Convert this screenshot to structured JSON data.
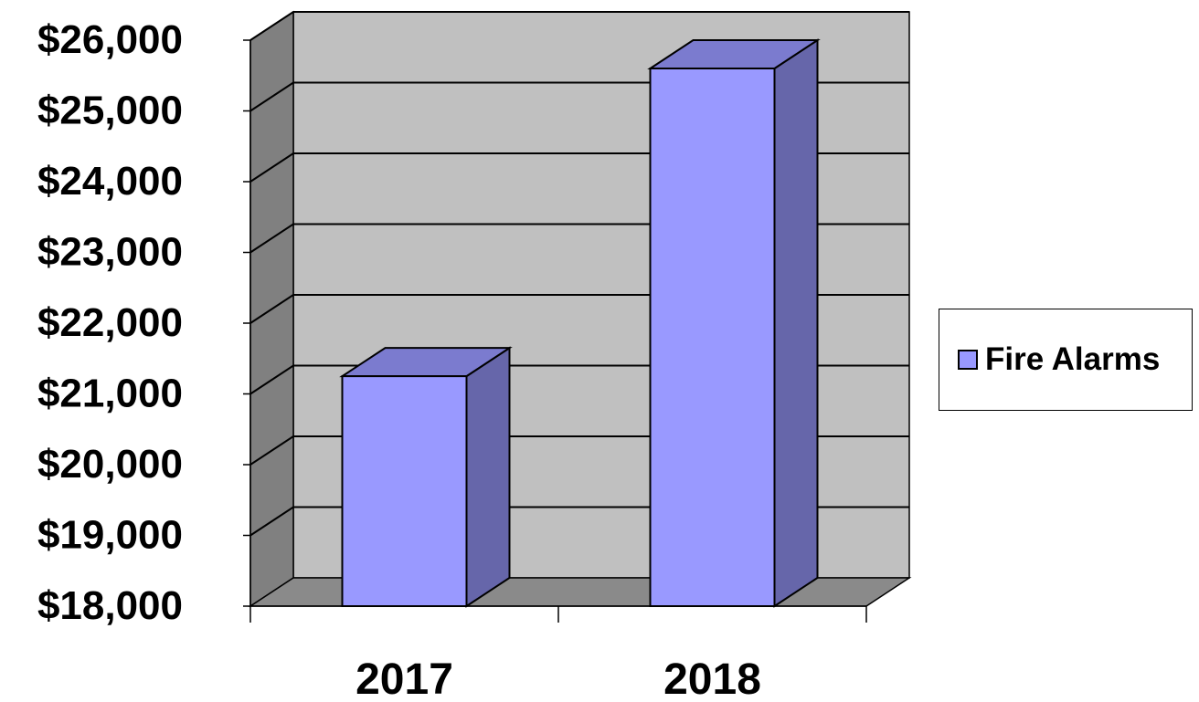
{
  "chart_data": {
    "type": "bar",
    "categories": [
      "2017",
      "2018"
    ],
    "series": [
      {
        "name": "Fire Alarms",
        "values": [
          21250,
          25600
        ]
      }
    ],
    "y_tick_labels": [
      "$18,000",
      "$19,000",
      "$20,000",
      "$21,000",
      "$22,000",
      "$23,000",
      "$24,000",
      "$25,000",
      "$26,000"
    ],
    "ylim": [
      18000,
      26000
    ],
    "y_step": 1000,
    "grid": true,
    "legend_position": "right",
    "style": "3d",
    "colors": {
      "bar_front": "#9999ff",
      "bar_side": "#6666aa",
      "bar_top": "#7b7bcf",
      "back_wall": "#c0c0c0",
      "side_wall": "#808080",
      "floor": "#8a8a8a"
    }
  }
}
